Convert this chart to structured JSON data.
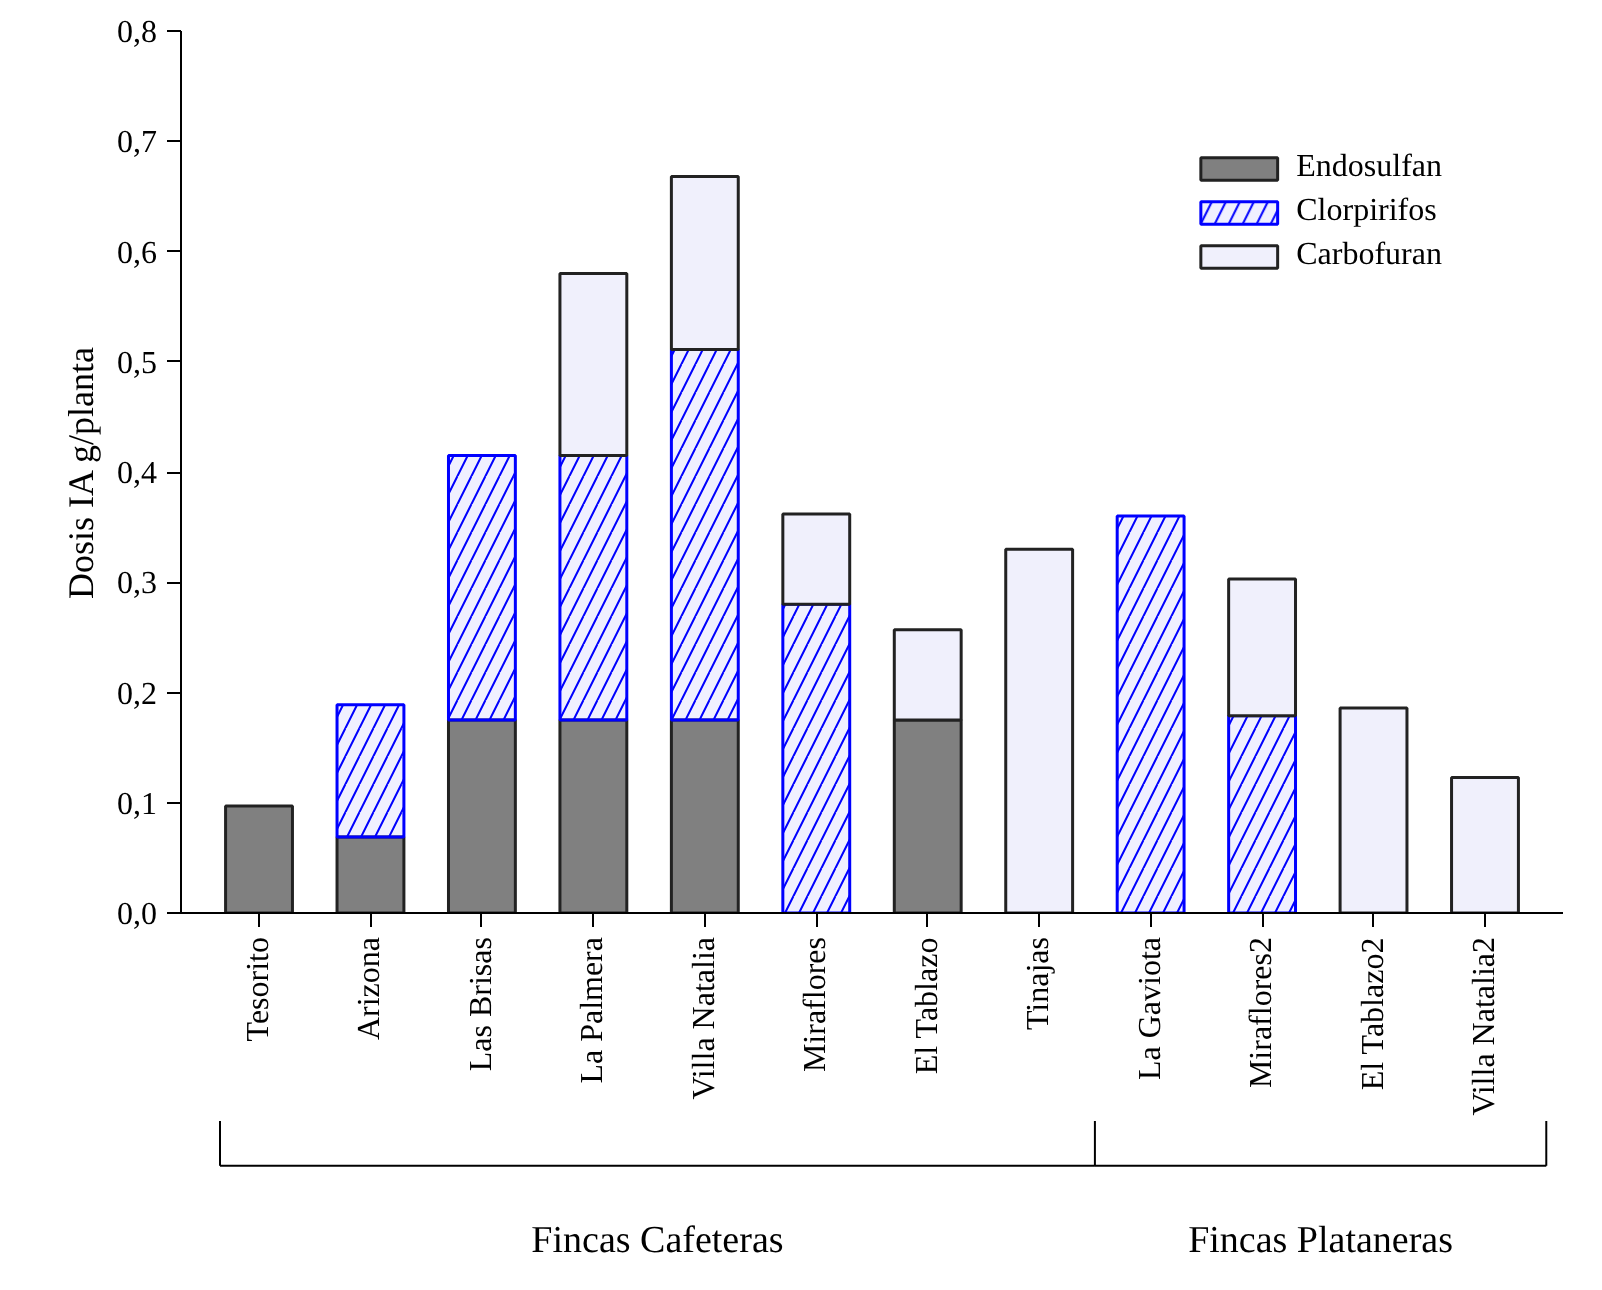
{
  "chart_data": {
    "type": "bar",
    "stacked": true,
    "ylabel": "Dosis IA g/planta",
    "categories": [
      "Tesorito",
      "Arizona",
      "Las Brisas",
      "La Palmera",
      "Villa Natalia",
      "Miraflores",
      "El Tablazo",
      "Tinajas",
      "La Gaviota",
      "Miraflores2",
      "El Tablazo2",
      "Villa Natalia2"
    ],
    "series": [
      {
        "name": "Endosulfan",
        "color": "#808080",
        "values": [
          0.097,
          0.069,
          0.175,
          0.175,
          0.175,
          null,
          0.175,
          null,
          null,
          null,
          null,
          null
        ]
      },
      {
        "name": "Clorpirifos",
        "color": "#0000ff",
        "values": [
          null,
          0.12,
          0.24,
          0.24,
          0.336,
          0.28,
          null,
          null,
          0.36,
          0.179,
          null,
          null
        ]
      },
      {
        "name": "Carbofuran",
        "color": "#f0f0fc",
        "values": [
          null,
          null,
          null,
          0.165,
          0.157,
          0.082,
          0.082,
          0.33,
          null,
          0.124,
          0.186,
          0.123
        ]
      }
    ],
    "ylim": [
      0,
      0.8
    ],
    "yticks": [
      {
        "value": 0,
        "label": "0,0"
      },
      {
        "value": 0.1,
        "label": "0,1"
      },
      {
        "value": 0.2,
        "label": "0,2"
      },
      {
        "value": 0.3,
        "label": "0,3"
      },
      {
        "value": 0.4,
        "label": "0,4"
      },
      {
        "value": 0.5,
        "label": "0,5"
      },
      {
        "value": 0.6,
        "label": "0,6"
      },
      {
        "value": 0.7,
        "label": "0,7"
      },
      {
        "value": 0.8,
        "label": "0,8"
      }
    ],
    "legend": "top right",
    "grid": false,
    "annotations": [
      "Fincas Cafeteras",
      "Fincas Plataneras"
    ]
  }
}
